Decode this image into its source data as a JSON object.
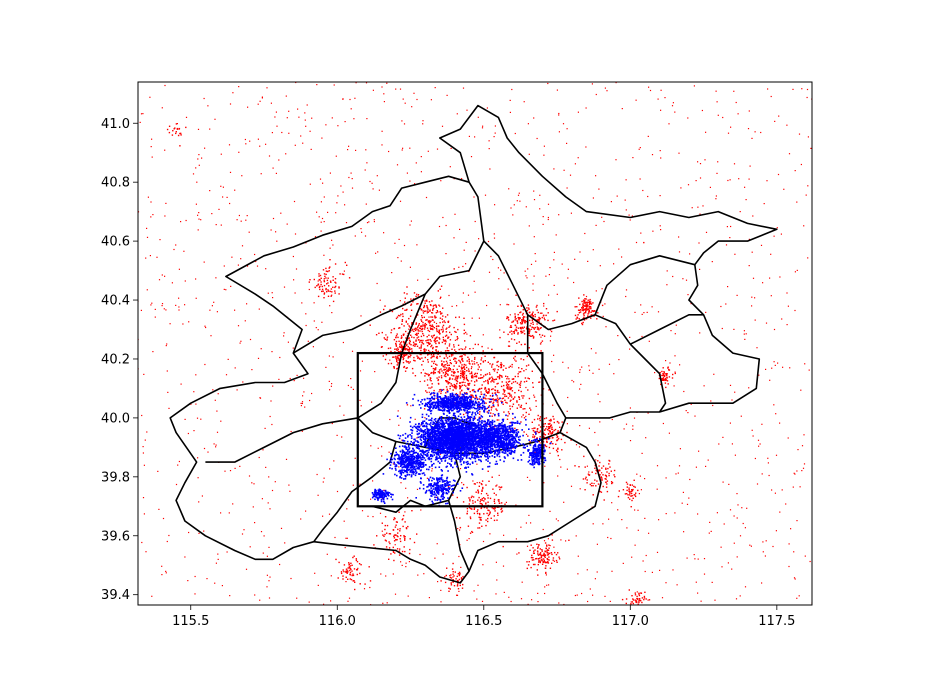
{
  "chart_data": {
    "type": "scatter",
    "title": "",
    "xlabel": "",
    "ylabel": "",
    "xlim": [
      115.32,
      117.62
    ],
    "ylim": [
      39.365,
      41.14
    ],
    "xticks": [
      115.5,
      116.0,
      116.5,
      117.0,
      117.5
    ],
    "xtick_labels": [
      "115.5",
      "116.0",
      "116.5",
      "117.0",
      "117.5"
    ],
    "yticks": [
      39.4,
      39.6,
      39.8,
      40.0,
      40.2,
      40.4,
      40.6,
      40.8,
      41.0
    ],
    "ytick_labels": [
      "39.4",
      "39.6",
      "39.8",
      "40.0",
      "40.2",
      "40.4",
      "40.6",
      "40.8",
      "41.0"
    ],
    "grid": false,
    "legend": "none",
    "series": [
      {
        "color": "#ff0000",
        "marker_size": 1,
        "description_points": "scattered points across region"
      },
      {
        "color": "#0000ff",
        "marker_size": 1,
        "description_points": "dense points in central urban core"
      }
    ],
    "red_clusters": [
      {
        "x": 116.3,
        "y": 40.3,
        "spread": 0.12,
        "n": 400
      },
      {
        "x": 116.4,
        "y": 40.15,
        "spread": 0.1,
        "n": 350
      },
      {
        "x": 116.55,
        "y": 40.1,
        "spread": 0.12,
        "n": 350
      },
      {
        "x": 116.65,
        "y": 40.32,
        "spread": 0.07,
        "n": 200
      },
      {
        "x": 116.85,
        "y": 40.37,
        "spread": 0.04,
        "n": 120
      },
      {
        "x": 116.72,
        "y": 39.95,
        "spread": 0.06,
        "n": 150
      },
      {
        "x": 116.7,
        "y": 39.53,
        "spread": 0.05,
        "n": 120
      },
      {
        "x": 116.05,
        "y": 39.48,
        "spread": 0.05,
        "n": 60
      },
      {
        "x": 117.02,
        "y": 39.38,
        "spread": 0.03,
        "n": 50
      },
      {
        "x": 117.12,
        "y": 40.14,
        "spread": 0.03,
        "n": 50
      },
      {
        "x": 116.22,
        "y": 40.22,
        "spread": 0.05,
        "n": 150
      },
      {
        "x": 115.97,
        "y": 40.46,
        "spread": 0.06,
        "n": 80
      },
      {
        "x": 115.45,
        "y": 40.97,
        "spread": 0.03,
        "n": 20
      },
      {
        "x": 116.2,
        "y": 39.6,
        "spread": 0.06,
        "n": 80
      },
      {
        "x": 116.5,
        "y": 39.7,
        "spread": 0.08,
        "n": 150
      },
      {
        "x": 116.9,
        "y": 39.8,
        "spread": 0.06,
        "n": 80
      },
      {
        "x": 117.0,
        "y": 39.75,
        "spread": 0.03,
        "n": 40
      },
      {
        "x": 116.4,
        "y": 39.45,
        "spread": 0.04,
        "n": 50
      }
    ],
    "red_background_points": 1400,
    "red_background_extent": {
      "x": [
        115.32,
        117.62
      ],
      "y": [
        39.365,
        41.14
      ]
    },
    "blue_clusters": [
      {
        "x": 116.4,
        "y": 39.93,
        "spread_x": 0.12,
        "spread_y": 0.07,
        "n": 2600
      },
      {
        "x": 116.55,
        "y": 39.93,
        "spread_x": 0.08,
        "spread_y": 0.06,
        "n": 800
      },
      {
        "x": 116.4,
        "y": 40.05,
        "spread_x": 0.1,
        "spread_y": 0.03,
        "n": 600
      },
      {
        "x": 116.25,
        "y": 39.85,
        "spread_x": 0.06,
        "spread_y": 0.05,
        "n": 400
      },
      {
        "x": 116.35,
        "y": 39.76,
        "spread_x": 0.05,
        "spread_y": 0.04,
        "n": 200
      },
      {
        "x": 116.15,
        "y": 39.74,
        "spread_x": 0.03,
        "spread_y": 0.02,
        "n": 120
      },
      {
        "x": 116.68,
        "y": 39.88,
        "spread_x": 0.03,
        "spread_y": 0.04,
        "n": 200
      }
    ],
    "bounding_box": {
      "x0": 116.07,
      "x1": 116.7,
      "y0": 39.7,
      "y1": 40.22
    },
    "boundaries": {
      "outer": [
        [
          116.48,
          41.06
        ],
        [
          116.55,
          41.02
        ],
        [
          116.58,
          40.95
        ],
        [
          116.62,
          40.9
        ],
        [
          116.7,
          40.82
        ],
        [
          116.78,
          40.75
        ],
        [
          116.85,
          40.7
        ],
        [
          117.0,
          40.68
        ],
        [
          117.1,
          40.7
        ],
        [
          117.2,
          40.68
        ],
        [
          117.3,
          40.7
        ],
        [
          117.4,
          40.66
        ],
        [
          117.5,
          40.64
        ],
        [
          117.4,
          40.6
        ],
        [
          117.3,
          40.6
        ],
        [
          117.25,
          40.56
        ],
        [
          117.22,
          40.52
        ],
        [
          117.23,
          40.45
        ],
        [
          117.2,
          40.4
        ],
        [
          117.25,
          40.35
        ],
        [
          117.28,
          40.28
        ],
        [
          117.35,
          40.22
        ],
        [
          117.44,
          40.2
        ],
        [
          117.43,
          40.1
        ],
        [
          117.35,
          40.05
        ],
        [
          117.2,
          40.05
        ],
        [
          117.1,
          40.02
        ],
        [
          117.0,
          40.02
        ],
        [
          116.93,
          40.0
        ],
        [
          116.85,
          40.0
        ],
        [
          116.78,
          40.0
        ],
        [
          116.76,
          39.95
        ],
        [
          116.85,
          39.9
        ],
        [
          116.88,
          39.85
        ],
        [
          116.9,
          39.78
        ],
        [
          116.88,
          39.7
        ],
        [
          116.8,
          39.65
        ],
        [
          116.72,
          39.6
        ],
        [
          116.65,
          39.58
        ],
        [
          116.55,
          39.58
        ],
        [
          116.48,
          39.55
        ],
        [
          116.45,
          39.48
        ],
        [
          116.42,
          39.44
        ],
        [
          116.35,
          39.46
        ],
        [
          116.3,
          39.5
        ],
        [
          116.25,
          39.52
        ],
        [
          116.2,
          39.55
        ],
        [
          116.1,
          39.56
        ],
        [
          116.0,
          39.57
        ],
        [
          115.92,
          39.58
        ],
        [
          115.85,
          39.56
        ],
        [
          115.78,
          39.52
        ],
        [
          115.72,
          39.52
        ],
        [
          115.65,
          39.55
        ],
        [
          115.55,
          39.6
        ],
        [
          115.48,
          39.65
        ],
        [
          115.45,
          39.72
        ],
        [
          115.48,
          39.78
        ],
        [
          115.52,
          39.85
        ],
        [
          115.45,
          39.95
        ],
        [
          115.43,
          40.0
        ],
        [
          115.5,
          40.05
        ],
        [
          115.6,
          40.1
        ],
        [
          115.72,
          40.12
        ],
        [
          115.82,
          40.12
        ],
        [
          115.9,
          40.15
        ],
        [
          115.85,
          40.22
        ],
        [
          115.88,
          40.3
        ],
        [
          115.78,
          40.38
        ],
        [
          115.72,
          40.42
        ],
        [
          115.62,
          40.48
        ],
        [
          115.75,
          40.55
        ],
        [
          115.85,
          40.58
        ],
        [
          115.9,
          40.6
        ],
        [
          115.95,
          40.62
        ],
        [
          116.05,
          40.65
        ],
        [
          116.12,
          40.7
        ],
        [
          116.18,
          40.72
        ],
        [
          116.22,
          40.78
        ],
        [
          116.3,
          40.8
        ],
        [
          116.38,
          40.82
        ],
        [
          116.45,
          40.8
        ],
        [
          116.42,
          40.9
        ],
        [
          116.35,
          40.95
        ],
        [
          116.42,
          40.98
        ],
        [
          116.48,
          41.06
        ]
      ],
      "internal": [
        [
          [
            116.45,
            40.8
          ],
          [
            116.48,
            40.75
          ],
          [
            116.5,
            40.6
          ],
          [
            116.45,
            40.5
          ],
          [
            116.35,
            40.48
          ],
          [
            116.3,
            40.42
          ],
          [
            116.22,
            40.38
          ],
          [
            116.15,
            40.35
          ],
          [
            116.05,
            40.3
          ],
          [
            115.95,
            40.28
          ],
          [
            115.85,
            40.22
          ]
        ],
        [
          [
            116.5,
            40.6
          ],
          [
            116.55,
            40.55
          ],
          [
            116.6,
            40.45
          ],
          [
            116.65,
            40.35
          ],
          [
            116.72,
            40.3
          ],
          [
            116.8,
            40.32
          ],
          [
            116.88,
            40.35
          ],
          [
            116.95,
            40.32
          ],
          [
            117.0,
            40.25
          ],
          [
            117.05,
            40.2
          ],
          [
            117.1,
            40.15
          ],
          [
            117.12,
            40.05
          ],
          [
            117.1,
            40.02
          ]
        ],
        [
          [
            116.88,
            40.35
          ],
          [
            116.92,
            40.45
          ],
          [
            117.0,
            40.52
          ],
          [
            117.1,
            40.55
          ],
          [
            117.22,
            40.52
          ]
        ],
        [
          [
            117.0,
            40.25
          ],
          [
            117.1,
            40.3
          ],
          [
            117.2,
            40.35
          ],
          [
            117.25,
            40.35
          ]
        ],
        [
          [
            116.3,
            40.42
          ],
          [
            116.25,
            40.3
          ],
          [
            116.22,
            40.22
          ],
          [
            116.2,
            40.12
          ],
          [
            116.15,
            40.05
          ],
          [
            116.07,
            40.0
          ],
          [
            115.95,
            39.98
          ],
          [
            115.85,
            39.95
          ],
          [
            115.75,
            39.9
          ],
          [
            115.65,
            39.85
          ],
          [
            115.55,
            39.85
          ]
        ],
        [
          [
            116.65,
            40.35
          ],
          [
            116.65,
            40.22
          ],
          [
            116.7,
            40.15
          ],
          [
            116.75,
            40.05
          ],
          [
            116.78,
            40.0
          ]
        ],
        [
          [
            116.07,
            40.0
          ],
          [
            116.12,
            39.95
          ],
          [
            116.2,
            39.92
          ],
          [
            116.3,
            39.9
          ],
          [
            116.4,
            39.88
          ],
          [
            116.5,
            39.88
          ],
          [
            116.6,
            39.9
          ],
          [
            116.68,
            39.92
          ],
          [
            116.76,
            39.95
          ]
        ],
        [
          [
            116.4,
            39.88
          ],
          [
            116.42,
            39.8
          ],
          [
            116.38,
            39.72
          ],
          [
            116.4,
            39.65
          ],
          [
            116.42,
            39.55
          ],
          [
            116.45,
            39.48
          ]
        ],
        [
          [
            116.2,
            39.92
          ],
          [
            116.18,
            39.85
          ],
          [
            116.12,
            39.8
          ],
          [
            116.05,
            39.75
          ],
          [
            116.0,
            39.68
          ],
          [
            115.95,
            39.62
          ],
          [
            115.92,
            39.58
          ]
        ],
        [
          [
            116.3,
            39.9
          ],
          [
            116.32,
            39.95
          ],
          [
            116.35,
            40.0
          ],
          [
            116.4,
            40.0
          ],
          [
            116.45,
            39.98
          ],
          [
            116.45,
            39.92
          ],
          [
            116.4,
            39.88
          ]
        ],
        [
          [
            116.38,
            39.72
          ],
          [
            116.3,
            39.7
          ],
          [
            116.25,
            39.72
          ],
          [
            116.2,
            39.68
          ],
          [
            116.12,
            39.7
          ]
        ]
      ]
    }
  }
}
